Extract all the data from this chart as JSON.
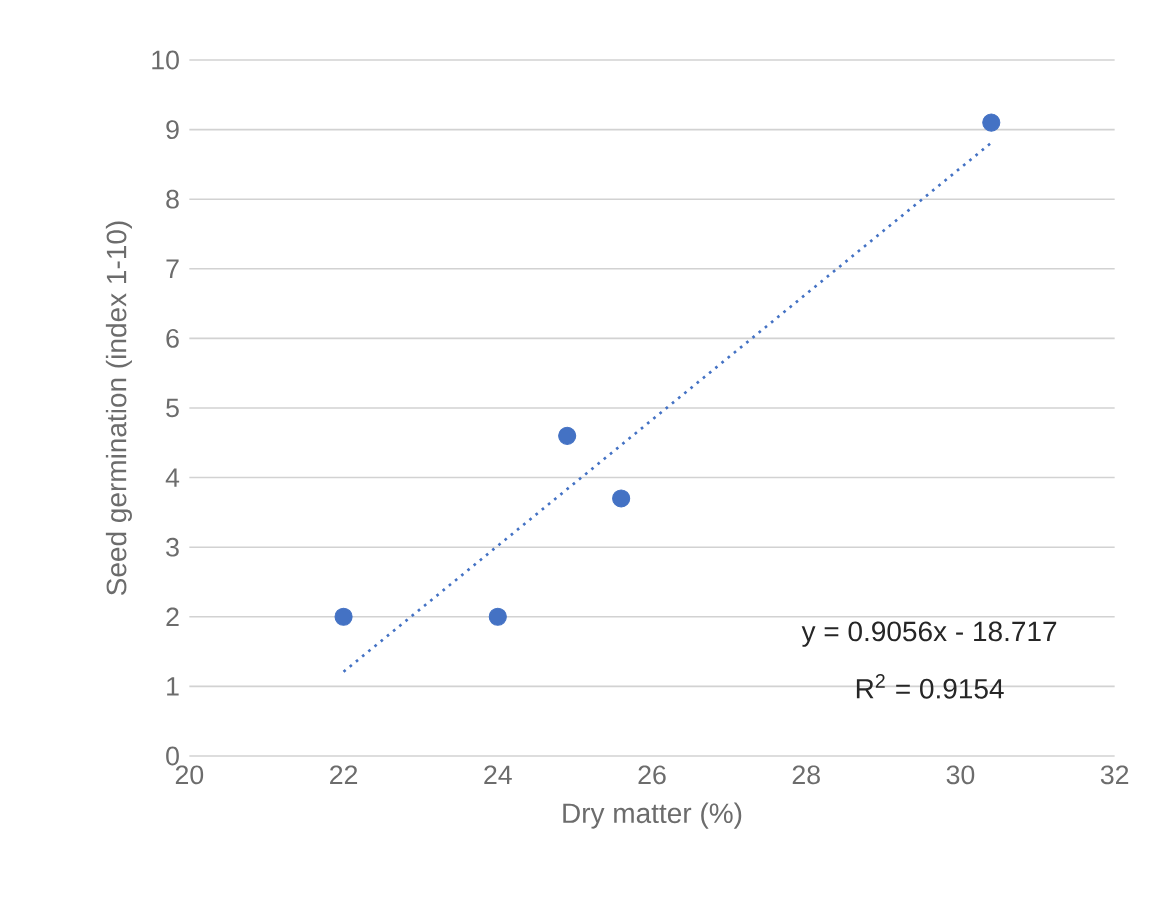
{
  "chart_data": {
    "type": "scatter",
    "xlabel": "Dry matter (%)",
    "ylabel": "Seed germination (index 1-10)",
    "xlim": [
      20,
      32
    ],
    "xticks": [
      20,
      22,
      24,
      26,
      28,
      30,
      32
    ],
    "ylim": [
      0,
      10
    ],
    "yticks": [
      0,
      1,
      2,
      3,
      4,
      5,
      6,
      7,
      8,
      9,
      10
    ],
    "grid": "y",
    "series": [
      {
        "color": "#4472c4",
        "marker": "circle",
        "x": [
          22,
          24,
          24.9,
          25.6,
          30.4
        ],
        "values": [
          2,
          2,
          4.6,
          3.7,
          9.1
        ]
      },
      {
        "type": "line",
        "color": "#4472c4",
        "marker": "none",
        "line_style": "dotted",
        "x": [
          22,
          30.4
        ],
        "values": [
          1.21,
          8.81
        ]
      }
    ],
    "annotations": [
      "y = 0.9056x - 18.717",
      "R$^{2}$ = 0.9154"
    ]
  }
}
